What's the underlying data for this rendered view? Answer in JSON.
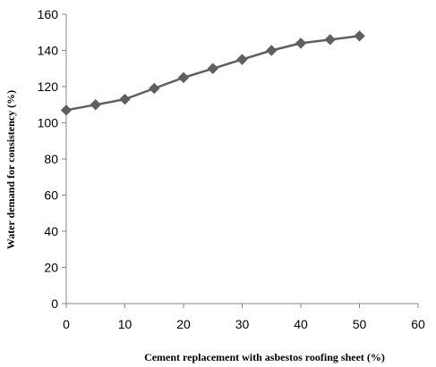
{
  "chart_data": {
    "type": "line",
    "title": "",
    "xlabel": "Cement replacement with asbestos roofing sheet (%)",
    "ylabel": "Water demand for consistency (%)",
    "xlim": [
      0,
      60
    ],
    "ylim": [
      0,
      160
    ],
    "x_ticks": [
      "0",
      "10",
      "20",
      "30",
      "40",
      "50",
      "60"
    ],
    "y_ticks": [
      "0",
      "20",
      "40",
      "60",
      "80",
      "100",
      "120",
      "140",
      "160"
    ],
    "grid": false,
    "legend": "none",
    "series": [
      {
        "x": [
          0,
          5,
          10,
          15,
          20,
          25,
          30,
          35,
          40,
          45,
          50
        ],
        "y": [
          107,
          110,
          113,
          119,
          125,
          130,
          135,
          140,
          144,
          146,
          148
        ],
        "color": "#5f5f5f",
        "marker": "diamond"
      }
    ]
  }
}
